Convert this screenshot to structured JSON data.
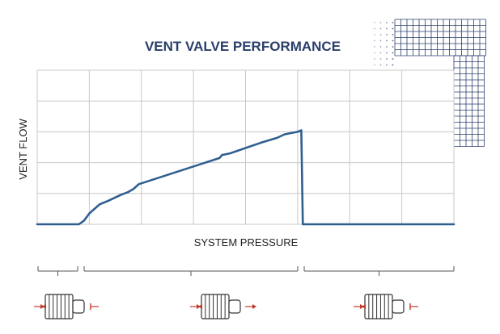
{
  "chart_data": {
    "type": "line",
    "title": "VENT VALVE PERFORMANCE",
    "xlabel": "SYSTEM PRESSURE",
    "ylabel": "VENT FLOW",
    "grid": true,
    "xlim": [
      0,
      8
    ],
    "ylim": [
      0,
      5
    ],
    "series": [
      {
        "points": [
          [
            0,
            0
          ],
          [
            0.8,
            0
          ],
          [
            0.9,
            0.12
          ],
          [
            1.0,
            0.35
          ],
          [
            1.1,
            0.5
          ],
          [
            1.2,
            0.65
          ],
          [
            1.35,
            0.75
          ],
          [
            1.6,
            0.95
          ],
          [
            1.75,
            1.05
          ],
          [
            1.85,
            1.15
          ],
          [
            1.95,
            1.3
          ],
          [
            3.5,
            2.15
          ],
          [
            3.55,
            2.25
          ],
          [
            3.7,
            2.3
          ],
          [
            4.3,
            2.65
          ],
          [
            4.5,
            2.75
          ],
          [
            4.6,
            2.8
          ],
          [
            4.75,
            2.92
          ],
          [
            5.0,
            3.0
          ],
          [
            5.07,
            3.05
          ],
          [
            5.1,
            0
          ],
          [
            8,
            0
          ]
        ]
      }
    ],
    "color": "#2f5f8f"
  },
  "colors": {
    "title": "#2b3f6b",
    "line": "#2f5f8f",
    "grid": "#c8c8c8",
    "decor": "#2b3f6b",
    "marker": "#c0392b"
  },
  "valve_states": [
    {
      "icon": "valve-closed-icon"
    },
    {
      "icon": "valve-venting-icon"
    },
    {
      "icon": "valve-reseated-icon"
    }
  ]
}
